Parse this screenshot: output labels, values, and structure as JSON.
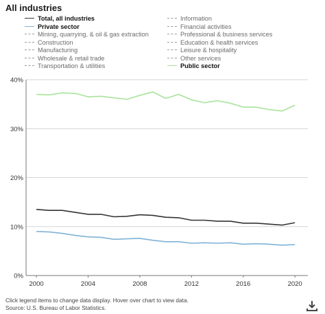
{
  "title": "All industries",
  "legend": {
    "left": [
      {
        "label": "Total, all industries",
        "style": "solid",
        "color": "#333333",
        "active": true
      },
      {
        "label": "Private sector",
        "style": "solid",
        "color": "#7fb2d6",
        "active": true
      },
      {
        "label": "Mining, quarrying, & oil & gas extraction",
        "style": "dashed",
        "color": "#9a9a9a",
        "active": false
      },
      {
        "label": "Construction",
        "style": "dashed",
        "color": "#9a9a9a",
        "active": false
      },
      {
        "label": "Manufacturing",
        "style": "dashed",
        "color": "#9a9a9a",
        "active": false
      },
      {
        "label": "Wholesale & retail trade",
        "style": "dashed",
        "color": "#9a9a9a",
        "active": false
      },
      {
        "label": "Transportation & utilities",
        "style": "dashed",
        "color": "#9a9a9a",
        "active": false
      }
    ],
    "right": [
      {
        "label": "Information",
        "style": "dashed",
        "color": "#9a9a9a",
        "active": false
      },
      {
        "label": "Financial activities",
        "style": "dashed",
        "color": "#9a9a9a",
        "active": false
      },
      {
        "label": "Professional & business services",
        "style": "dashed",
        "color": "#9a9a9a",
        "active": false
      },
      {
        "label": "Education & health services",
        "style": "dashed",
        "color": "#9a9a9a",
        "active": false
      },
      {
        "label": "Leisure & hospitality",
        "style": "dashed",
        "color": "#9a9a9a",
        "active": false
      },
      {
        "label": "Other services",
        "style": "dashed",
        "color": "#9a9a9a",
        "active": false
      },
      {
        "label": "Public sector",
        "style": "solid",
        "color": "#a8e39a",
        "active": true
      }
    ]
  },
  "chart_data": {
    "type": "line",
    "x": [
      2000,
      2001,
      2002,
      2003,
      2004,
      2005,
      2006,
      2007,
      2008,
      2009,
      2010,
      2011,
      2012,
      2013,
      2014,
      2015,
      2016,
      2017,
      2018,
      2019,
      2020
    ],
    "series": [
      {
        "name": "Total, all industries",
        "color": "#333333",
        "values": [
          13.5,
          13.3,
          13.3,
          12.9,
          12.5,
          12.5,
          12.0,
          12.1,
          12.4,
          12.3,
          11.9,
          11.8,
          11.3,
          11.3,
          11.1,
          11.1,
          10.7,
          10.7,
          10.5,
          10.3,
          10.8
        ]
      },
      {
        "name": "Private sector",
        "color": "#7fb2d6",
        "values": [
          9.0,
          8.9,
          8.6,
          8.2,
          7.9,
          7.8,
          7.4,
          7.5,
          7.6,
          7.2,
          6.9,
          6.9,
          6.6,
          6.7,
          6.6,
          6.7,
          6.4,
          6.5,
          6.4,
          6.2,
          6.3
        ]
      },
      {
        "name": "Public sector",
        "color": "#a8e39a",
        "values": [
          37.0,
          36.9,
          37.3,
          37.2,
          36.5,
          36.6,
          36.3,
          36.0,
          36.8,
          37.5,
          36.2,
          37.0,
          35.9,
          35.3,
          35.7,
          35.2,
          34.4,
          34.4,
          33.9,
          33.6,
          34.8
        ]
      }
    ],
    "xlim": [
      1999.2,
      2021
    ],
    "ylim": [
      0,
      40
    ],
    "yticks": [
      0,
      10,
      20,
      30,
      40
    ],
    "ytick_labels": [
      "0%",
      "10%",
      "20%",
      "30%",
      "40%"
    ],
    "xticks": [
      2000,
      2004,
      2008,
      2012,
      2016,
      2020
    ],
    "xtick_labels": [
      "2000",
      "2004",
      "2008",
      "2012",
      "2016",
      "2020"
    ],
    "grid": "horizontal",
    "xlabel": "",
    "ylabel": ""
  },
  "footer": {
    "note": "Click legend items to change data display. Hover over chart to view data.",
    "source": "Source: U.S. Bureau of Labor Statistics."
  },
  "icons": {
    "download": "download-icon"
  }
}
